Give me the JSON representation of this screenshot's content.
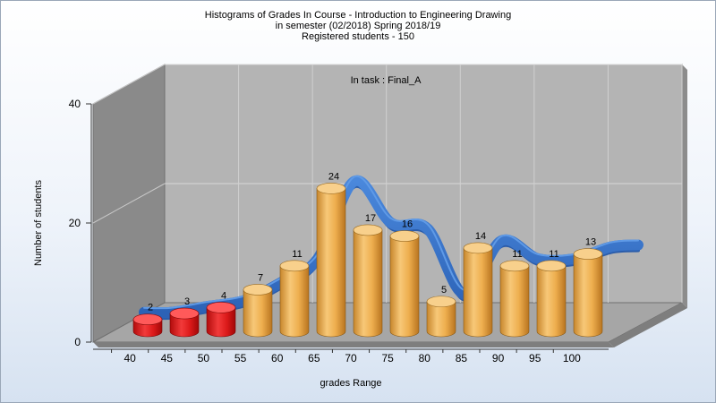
{
  "titles": {
    "line1": "Histograms of Grades  In Course - Introduction to Engineering Drawing",
    "line2": "in semester  (02/2018) Spring 2018/19",
    "line3": "Registered students - 150"
  },
  "chart_data": {
    "type": "bar",
    "annotation": "In task : Final_A",
    "xlabel": "grades Range",
    "ylabel": "Number of students",
    "categories": [
      "40",
      "45",
      "50",
      "55",
      "60",
      "65",
      "70",
      "75",
      "80",
      "85",
      "90",
      "95",
      "100"
    ],
    "values": [
      2,
      3,
      4,
      7,
      11,
      24,
      17,
      16,
      5,
      14,
      11,
      11,
      13
    ],
    "bar_colors": [
      "red",
      "red",
      "red",
      "orange",
      "orange",
      "orange",
      "orange",
      "orange",
      "orange",
      "orange",
      "orange",
      "orange",
      "orange"
    ],
    "y_ticks": [
      0,
      20,
      40
    ],
    "ylim": [
      0,
      40
    ],
    "grid": true,
    "trend": "smoothed ribbon overlay",
    "colors": {
      "red": "#e01818",
      "orange": "#f0b050",
      "ribbon": "#3a78cc",
      "back_wall": "#b4b4b4",
      "side_wall": "#8a8a8a",
      "floor": "#a6a6a6"
    }
  }
}
